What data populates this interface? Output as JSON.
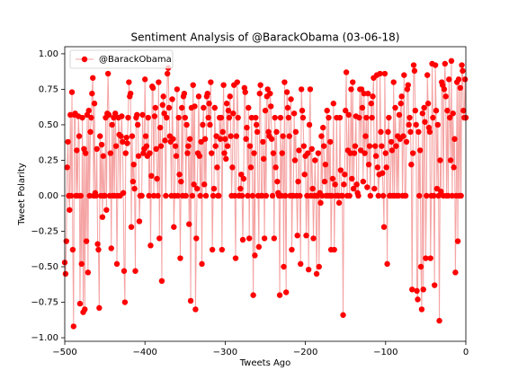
{
  "chart_data": {
    "type": "line",
    "title": "Sentiment Analysis of @BarackObama (03-06-18)",
    "xlabel": "Tweets Ago",
    "ylabel": "Tweet Polarity",
    "legend": "upper left",
    "xlim": [
      -500,
      0
    ],
    "xticks": [
      {
        "value": -500,
        "label": "−500"
      },
      {
        "value": -400,
        "label": "−400"
      },
      {
        "value": -300,
        "label": "−300"
      },
      {
        "value": -200,
        "label": "−200"
      },
      {
        "value": -100,
        "label": "−100"
      },
      0
    ],
    "ylim": [
      -1.025,
      1.05
    ],
    "yticks": [
      {
        "value": -1,
        "label": "−1.00"
      },
      {
        "value": -0.75,
        "label": "−0.75"
      },
      {
        "value": -0.5,
        "label": "−0.50"
      },
      {
        "value": -0.25,
        "label": "−0.25"
      },
      {
        "value": 0,
        "label": "0.00"
      },
      0.25,
      {
        "value": 0.5,
        "label": "0.50"
      },
      0.75,
      {
        "value": 1,
        "label": "1.00"
      }
    ],
    "x": [
      -500,
      -499,
      -498,
      -497,
      -496,
      -495,
      -494,
      -493,
      -492,
      -491,
      -490,
      -489,
      -488,
      -487,
      -486,
      -485,
      -484,
      -483,
      -482,
      -481,
      -480,
      -479,
      -478,
      -477,
      -476,
      -475,
      -474,
      -473,
      -472,
      -471,
      -470,
      -469,
      -468,
      -467,
      -466,
      -465,
      -464,
      -463,
      -462,
      -461,
      -460,
      -459,
      -458,
      -457,
      -456,
      -455,
      -454,
      -453,
      -452,
      -451,
      -450,
      -449,
      -448,
      -447,
      -446,
      -445,
      -444,
      -443,
      -442,
      -441,
      -440,
      -439,
      -438,
      -437,
      -436,
      -435,
      -434,
      -433,
      -432,
      -431,
      -430,
      -429,
      -428,
      -427,
      -426,
      -425,
      -424,
      -423,
      -422,
      -421,
      -420,
      -419,
      -418,
      -417,
      -416,
      -415,
      -414,
      -413,
      -412,
      -411,
      -410,
      -409,
      -408,
      -407,
      -406,
      -405,
      -404,
      -403,
      -402,
      -401,
      -400,
      -399,
      -398,
      -397,
      -396,
      -395,
      -394,
      -393,
      -392,
      -391,
      -390,
      -389,
      -388,
      -387,
      -386,
      -385,
      -384,
      -383,
      -382,
      -381,
      -380,
      -379,
      -378,
      -377,
      -376,
      -375,
      -374,
      -373,
      -372,
      -371,
      -370,
      -369,
      -368,
      -367,
      -366,
      -365,
      -364,
      -363,
      -362,
      -361,
      -360,
      -359,
      -358,
      -357,
      -356,
      -355,
      -354,
      -353,
      -352,
      -351,
      -350,
      -349,
      -348,
      -347,
      -346,
      -345,
      -344,
      -343,
      -342,
      -341,
      -340,
      -339,
      -338,
      -337,
      -336,
      -335,
      -334,
      -333,
      -332,
      -331,
      -330,
      -329,
      -328,
      -327,
      -326,
      -325,
      -324,
      -323,
      -322,
      -321,
      -320,
      -319,
      -318,
      -317,
      -316,
      -315,
      -314,
      -313,
      -312,
      -311,
      -310,
      -309,
      -308,
      -307,
      -306,
      -305,
      -304,
      -303,
      -302,
      -301,
      -300,
      -299,
      -298,
      -297,
      -296,
      -295,
      -294,
      -293,
      -292,
      -291,
      -290,
      -289,
      -288,
      -287,
      -286,
      -285,
      -284,
      -283,
      -282,
      -281,
      -280,
      -279,
      -278,
      -277,
      -276,
      -275,
      -274,
      -273,
      -272,
      -271,
      -270,
      -269,
      -268,
      -267,
      -266,
      -265,
      -264,
      -263,
      -262,
      -261,
      -260,
      -259,
      -258,
      -257,
      -256,
      -255,
      -254,
      -253,
      -252,
      -251,
      -250,
      -249,
      -248,
      -247,
      -246,
      -245,
      -244,
      -243,
      -242,
      -241,
      -240,
      -239,
      -238,
      -237,
      -236,
      -235,
      -234,
      -233,
      -232,
      -231,
      -230,
      -229,
      -228,
      -227,
      -226,
      -225,
      -224,
      -223,
      -222,
      -221,
      -220,
      -219,
      -218,
      -217,
      -216,
      -215,
      -214,
      -213,
      -212,
      -211,
      -210,
      -209,
      -208,
      -207,
      -206,
      -205,
      -204,
      -203,
      -202,
      -201,
      -200,
      -199,
      -198,
      -197,
      -196,
      -195,
      -194,
      -193,
      -192,
      -191,
      -190,
      -189,
      -188,
      -187,
      -186,
      -185,
      -184,
      -183,
      -182,
      -181,
      -180,
      -179,
      -178,
      -177,
      -176,
      -175,
      -174,
      -173,
      -172,
      -171,
      -170,
      -169,
      -168,
      -167,
      -166,
      -165,
      -164,
      -163,
      -162,
      -161,
      -160,
      -159,
      -158,
      -157,
      -156,
      -155,
      -154,
      -153,
      -152,
      -151,
      -150,
      -149,
      -148,
      -147,
      -146,
      -145,
      -144,
      -143,
      -142,
      -141,
      -140,
      -139,
      -138,
      -137,
      -136,
      -135,
      -134,
      -133,
      -132,
      -131,
      -130,
      -129,
      -128,
      -127,
      -126,
      -125,
      -124,
      -123,
      -122,
      -121,
      -120,
      -119,
      -118,
      -117,
      -116,
      -115,
      -114,
      -113,
      -112,
      -111,
      -110,
      -109,
      -108,
      -107,
      -106,
      -105,
      -104,
      -103,
      -102,
      -101,
      -100,
      -99,
      -98,
      -97,
      -96,
      -95,
      -94,
      -93,
      -92,
      -91,
      -90,
      -89,
      -88,
      -87,
      -86,
      -85,
      -84,
      -83,
      -82,
      -81,
      -80,
      -79,
      -78,
      -77,
      -76,
      -75,
      -74,
      -73,
      -72,
      -71,
      -70,
      -69,
      -68,
      -67,
      -66,
      -65,
      -64,
      -63,
      -62,
      -61,
      -60,
      -59,
      -58,
      -57,
      -56,
      -55,
      -54,
      -53,
      -52,
      -51,
      -50,
      -49,
      -48,
      -47,
      -46,
      -45,
      -44,
      -43,
      -42,
      -41,
      -40,
      -39,
      -38,
      -37,
      -36,
      -35,
      -34,
      -33,
      -32,
      -31,
      -30,
      -29,
      -28,
      -27,
      -26,
      -25,
      -24,
      -23,
      -22,
      -21,
      -20,
      -19,
      -18,
      -17,
      -16,
      -15,
      -14,
      -13,
      -12,
      -11,
      -10,
      -9,
      -8,
      -7,
      -6,
      -5,
      -4,
      -3,
      -2,
      -1,
      0
    ],
    "series": [
      {
        "name": "@BarackObama",
        "color": "red",
        "line_color": "#f5a3a3",
        "values": [
          -0.47,
          -0.55,
          -0.32,
          0.2,
          0.38,
          0,
          -0.1,
          0.57,
          0,
          0.73,
          -0.38,
          -0.92,
          0.57,
          0.58,
          0,
          0.32,
          0,
          0.56,
          0.42,
          -0.76,
          0,
          -0.48,
          0.55,
          -0.82,
          0.33,
          -0.8,
          0.3,
          -0.32,
          0.57,
          -0.54,
          0.6,
          0,
          0.45,
          0.55,
          0.72,
          0.83,
          0,
          0.65,
          0.02,
          0,
          0.33,
          -0.34,
          -0.38,
          -0.79,
          0.42,
          0,
          0.36,
          -0.15,
          0.28,
          0,
          0,
          0.55,
          -0.1,
          0.58,
          0.86,
          0.57,
          0,
          0.3,
          -0.37,
          0.5,
          0,
          0.55,
          0,
          0.58,
          0.35,
          -0.48,
          0,
          0.55,
          0.43,
          0,
          0.42,
          0.56,
          0.38,
          0.02,
          -0.53,
          -0.75,
          0.3,
          0.41,
          0.37,
          0.55,
          0.8,
          0.7,
          0.72,
          -0.22,
          0.42,
          0.1,
          0.22,
          0.05,
          -0.53,
          0.55,
          0.57,
          0.5,
          0.28,
          -0.18,
          0,
          0,
          0,
          0.57,
          0.3,
          0.33,
          0.82,
          0.42,
          0.35,
          0.28,
          0.55,
          0,
          0.3,
          -0.35,
          0.14,
          0.77,
          0.76,
          0,
          0.56,
          0.62,
          0.33,
          0.12,
          0,
          0.8,
          -0.3,
          0.48,
          0.35,
          -0.6,
          0.64,
          0.7,
          0.58,
          0.39,
          0,
          0.55,
          0.86,
          0.9,
          0.62,
          0.42,
          0.38,
          0,
          0.68,
          0.4,
          -0.22,
          0,
          0.35,
          0.28,
          0.75,
          0,
          0.55,
          0.15,
          -0.44,
          0.1,
          0.62,
          0,
          0.7,
          0.72,
          0.55,
          0,
          0.5,
          0.3,
          0.35,
          -0.2,
          0.4,
          -0.74,
          0.62,
          0,
          0.78,
          0.08,
          0.63,
          -0.8,
          -0.3,
          0.05,
          0.3,
          0.7,
          0.28,
          0,
          0.38,
          -0.48,
          0.5,
          0.62,
          0.08,
          0.4,
          0,
          0.7,
          0.72,
          0.55,
          0.65,
          0.5,
          0.8,
          0.3,
          -0.38,
          0,
          0.05,
          0.62,
          0.35,
          0.42,
          0.2,
          0,
          0,
          0.55,
          0.4,
          0.55,
          -0.38,
          0.45,
          0.78,
          0.3,
          0.4,
          0.26,
          0.65,
          0.35,
          0.6,
          0.55,
          0.7,
          0.42,
          0,
          0.2,
          0.58,
          0.78,
          0,
          -0.44,
          0.42,
          0.8,
          0.55,
          0,
          0,
          0.05,
          0.15,
          0,
          -0.31,
          0.12,
          0.76,
          0.73,
          0.4,
          0.48,
          0,
          0.62,
          -0.3,
          0.35,
          0.2,
          0.55,
          0,
          -0.7,
          0.3,
          -0.42,
          0.55,
          0.5,
          0.45,
          0,
          -0.36,
          0.72,
          0.78,
          0,
          0,
          0.38,
          0.26,
          -0.3,
          0.6,
          0,
          0.7,
          0.75,
          0.45,
          0.42,
          0.72,
          0.63,
          0.4,
          0,
          0.3,
          -0.3,
          0.55,
          0.2,
          0.45,
          0.1,
          0.02,
          0,
          -0.7,
          0.55,
          0,
          0.3,
          0.42,
          -0.5,
          0.8,
          0,
          -0.68,
          0.73,
          0.62,
          0.55,
          0.42,
          0,
          0.68,
          -0.38,
          0,
          0,
          0.58,
          0.25,
          0.45,
          0,
          -0.28,
          0.1,
          0.32,
          0,
          -0.48,
          0.75,
          0.6,
          0.55,
          0.35,
          0.15,
          0.28,
          -0.28,
          0,
          0.3,
          -0.52,
          0.5,
          0.75,
          0,
          0.33,
          0.05,
          -0.3,
          0,
          0.25,
          0,
          -0.55,
          0,
          0.3,
          -0.5,
          0.02,
          -0.05,
          0.42,
          0,
          0.48,
          0.35,
          0.1,
          0.22,
          0,
          0.6,
          0,
          0.55,
          0,
          0.38,
          -0.38,
          0,
          0.12,
          0.65,
          -0.38,
          0.08,
          0,
          0.55,
          0,
          0,
          -0.05,
          0.55,
          0.18,
          0,
          0,
          -0.84,
          0.08,
          0.15,
          0.6,
          0.87,
          0,
          0.32,
          0.57,
          0,
          0.3,
          0.75,
          0.12,
          0.8,
          0.05,
          0.3,
          0.35,
          0.56,
          0.08,
          0.02,
          0,
          0.55,
          0.75,
          0.32,
          0.75,
          0.62,
          0.1,
          0.72,
          0.3,
          0.42,
          0.55,
          0.06,
          0.72,
          0.22,
          0.35,
          0,
          0.65,
          0.55,
          0.7,
          0.83,
          0.05,
          0.35,
          0.28,
          0.85,
          0.2,
          0,
          0.15,
          0.86,
          0.45,
          0.35,
          0.16,
          0,
          -0.22,
          0.86,
          0.3,
          0.2,
          -0.48,
          0.45,
          0.55,
          0,
          0,
          0.38,
          0.32,
          0,
          0.8,
          0,
          0.62,
          0.35,
          0,
          0.42,
          0,
          0.57,
          0.4,
          0.65,
          0.7,
          0,
          0.42,
          0.85,
          0,
          0,
          0.38,
          0.75,
          0.78,
          0.5,
          0.55,
          0.45,
          0.22,
          -0.66,
          0.3,
          0.92,
          0.88,
          0.6,
          0.5,
          -0.67,
          -0.73,
          0.45,
          0,
          0.32,
          -0.5,
          -0.8,
          0.58,
          -0.66,
          0.62,
          0.52,
          -0.44,
          0,
          0.85,
          0.65,
          0.48,
          0.45,
          -0.44,
          0,
          0.93,
          0.55,
          0,
          -0.63,
          0.92,
          0.6,
          0.05,
          0.5,
          0,
          -0.88,
          0.25,
          0.03,
          0.8,
          0.78,
          0,
          0.75,
          0.93,
          0.7,
          0,
          0.6,
          0,
          0.82,
          0.55,
          0.25,
          0.95,
          0,
          0.58,
          0.2,
          0.4,
          -0.54,
          0,
          0.8,
          -0.32,
          0.82,
          0,
          0.76,
          0,
          0.92,
          0.88,
          0.6,
          0.55,
          0.82,
          0.55
        ]
      }
    ]
  }
}
